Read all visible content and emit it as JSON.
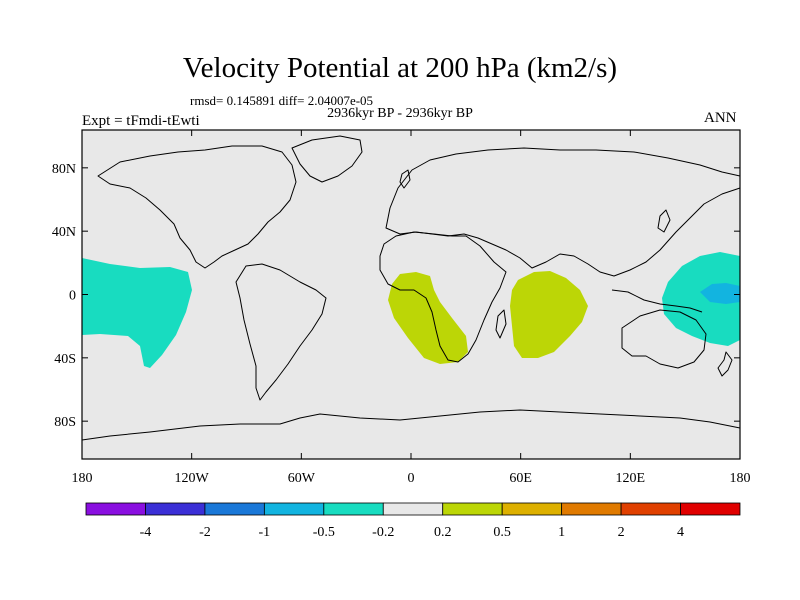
{
  "title": "Velocity Potential at 200 hPa (km2/s)",
  "stats_text": "rmsd= 0.145891 diff= 2.04007e-05",
  "period": "2936kyr BP - 2936kyr BP",
  "experiment": "Expt = tFmdi-tEwti",
  "season": "ANN",
  "lat_ticks": [
    {
      "value": 80,
      "label": "80N"
    },
    {
      "value": 40,
      "label": "40N"
    },
    {
      "value": 0,
      "label": "0"
    },
    {
      "value": -40,
      "label": "40S"
    },
    {
      "value": -80,
      "label": "80S"
    }
  ],
  "lon_ticks": [
    {
      "value": -180,
      "label": "180"
    },
    {
      "value": -120,
      "label": "120W"
    },
    {
      "value": -60,
      "label": "60W"
    },
    {
      "value": 0,
      "label": "0"
    },
    {
      "value": 60,
      "label": "60E"
    },
    {
      "value": 120,
      "label": "120E"
    },
    {
      "value": 180,
      "label": "180"
    }
  ],
  "colorbar": {
    "colors": [
      "#8a0fe0",
      "#3b2fd6",
      "#1a78d8",
      "#12b4e0",
      "#18dcc0",
      "#e8e8e8",
      "#bcd606",
      "#ddb000",
      "#e07a00",
      "#e04000",
      "#e00000"
    ],
    "labels": [
      "-4",
      "-2",
      "-1",
      "-0.5",
      "-0.2",
      "0.2",
      "0.5",
      "1",
      "2",
      "4"
    ]
  },
  "background_color": "#e8e8e8"
}
